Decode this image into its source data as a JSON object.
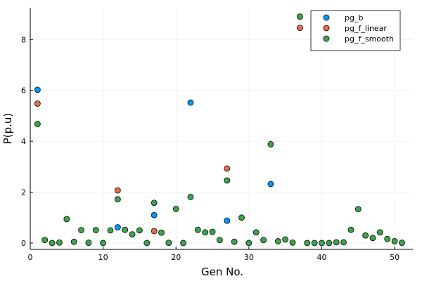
{
  "chart_data": {
    "type": "scatter",
    "xlabel": "Gen No.",
    "ylabel": "P(p.u)",
    "xlim": [
      0,
      52.5
    ],
    "ylim": [
      -0.25,
      9.25
    ],
    "xticks": [
      0,
      10,
      20,
      30,
      40,
      50
    ],
    "yticks": [
      0,
      2,
      4,
      6,
      8
    ],
    "grid": true,
    "legend_position": "top-right",
    "series": [
      {
        "name": "pg_b",
        "color": "#009af9",
        "points": [
          [
            1,
            6.02
          ],
          [
            12,
            0.62
          ],
          [
            17,
            1.1
          ],
          [
            22,
            5.52
          ],
          [
            27,
            0.88
          ],
          [
            33,
            2.32
          ]
        ]
      },
      {
        "name": "pg_f_linear",
        "color": "#e26f46",
        "points": [
          [
            1,
            5.48
          ],
          [
            12,
            2.07
          ],
          [
            17,
            0.47
          ],
          [
            27,
            2.93
          ],
          [
            37,
            8.46
          ]
        ]
      },
      {
        "name": "pg_f_smooth",
        "color": "#3da44d",
        "points": [
          [
            1,
            4.68
          ],
          [
            2,
            0.12
          ],
          [
            3,
            0.0
          ],
          [
            4,
            0.02
          ],
          [
            5,
            0.94
          ],
          [
            6,
            0.05
          ],
          [
            7,
            0.51
          ],
          [
            8,
            0.01
          ],
          [
            9,
            0.51
          ],
          [
            10,
            0.0
          ],
          [
            11,
            0.5
          ],
          [
            12,
            1.72
          ],
          [
            13,
            0.52
          ],
          [
            14,
            0.34
          ],
          [
            15,
            0.5
          ],
          [
            16,
            0.0
          ],
          [
            17,
            1.58
          ],
          [
            18,
            0.41
          ],
          [
            19,
            0.01
          ],
          [
            20,
            1.34
          ],
          [
            21,
            0.0
          ],
          [
            22,
            1.81
          ],
          [
            23,
            0.52
          ],
          [
            24,
            0.42
          ],
          [
            25,
            0.44
          ],
          [
            26,
            0.12
          ],
          [
            27,
            2.46
          ],
          [
            28,
            0.05
          ],
          [
            29,
            1.0
          ],
          [
            30,
            0.0
          ],
          [
            31,
            0.42
          ],
          [
            32,
            0.12
          ],
          [
            33,
            3.88
          ],
          [
            34,
            0.07
          ],
          [
            35,
            0.14
          ],
          [
            36,
            0.02
          ],
          [
            37,
            8.9
          ],
          [
            38,
            0.0
          ],
          [
            39,
            0.0
          ],
          [
            40,
            0.0
          ],
          [
            41,
            0.0
          ],
          [
            42,
            0.03
          ],
          [
            43,
            0.03
          ],
          [
            44,
            0.52
          ],
          [
            45,
            1.33
          ],
          [
            46,
            0.3
          ],
          [
            47,
            0.2
          ],
          [
            48,
            0.42
          ],
          [
            49,
            0.16
          ],
          [
            50,
            0.07
          ],
          [
            51,
            0.01
          ]
        ]
      }
    ]
  }
}
